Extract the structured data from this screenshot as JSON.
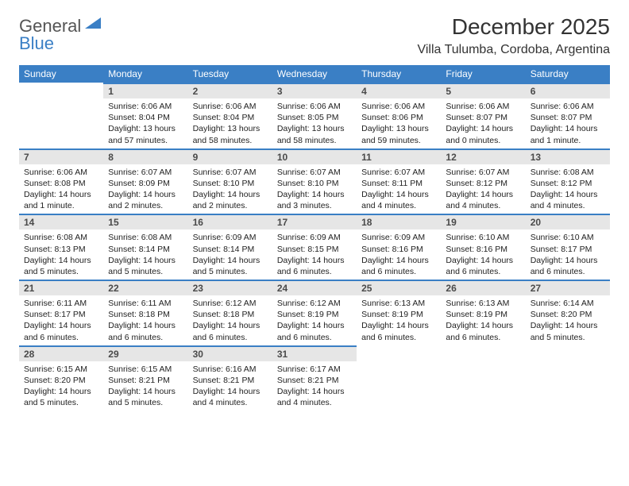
{
  "logo": {
    "line1": "General",
    "line2": "Blue"
  },
  "title": "December 2025",
  "location": "Villa Tulumba, Cordoba, Argentina",
  "colors": {
    "header_bg": "#3a7fc5",
    "header_text": "#ffffff",
    "daynum_bg": "#e6e6e6",
    "daynum_border": "#3a7fc5",
    "body_bg": "#ffffff",
    "text": "#1a1a1a"
  },
  "weekdays": [
    "Sunday",
    "Monday",
    "Tuesday",
    "Wednesday",
    "Thursday",
    "Friday",
    "Saturday"
  ],
  "weeks": [
    [
      null,
      {
        "n": "1",
        "sr": "Sunrise: 6:06 AM",
        "ss": "Sunset: 8:04 PM",
        "dl": "Daylight: 13 hours and 57 minutes."
      },
      {
        "n": "2",
        "sr": "Sunrise: 6:06 AM",
        "ss": "Sunset: 8:04 PM",
        "dl": "Daylight: 13 hours and 58 minutes."
      },
      {
        "n": "3",
        "sr": "Sunrise: 6:06 AM",
        "ss": "Sunset: 8:05 PM",
        "dl": "Daylight: 13 hours and 58 minutes."
      },
      {
        "n": "4",
        "sr": "Sunrise: 6:06 AM",
        "ss": "Sunset: 8:06 PM",
        "dl": "Daylight: 13 hours and 59 minutes."
      },
      {
        "n": "5",
        "sr": "Sunrise: 6:06 AM",
        "ss": "Sunset: 8:07 PM",
        "dl": "Daylight: 14 hours and 0 minutes."
      },
      {
        "n": "6",
        "sr": "Sunrise: 6:06 AM",
        "ss": "Sunset: 8:07 PM",
        "dl": "Daylight: 14 hours and 1 minute."
      }
    ],
    [
      {
        "n": "7",
        "sr": "Sunrise: 6:06 AM",
        "ss": "Sunset: 8:08 PM",
        "dl": "Daylight: 14 hours and 1 minute."
      },
      {
        "n": "8",
        "sr": "Sunrise: 6:07 AM",
        "ss": "Sunset: 8:09 PM",
        "dl": "Daylight: 14 hours and 2 minutes."
      },
      {
        "n": "9",
        "sr": "Sunrise: 6:07 AM",
        "ss": "Sunset: 8:10 PM",
        "dl": "Daylight: 14 hours and 2 minutes."
      },
      {
        "n": "10",
        "sr": "Sunrise: 6:07 AM",
        "ss": "Sunset: 8:10 PM",
        "dl": "Daylight: 14 hours and 3 minutes."
      },
      {
        "n": "11",
        "sr": "Sunrise: 6:07 AM",
        "ss": "Sunset: 8:11 PM",
        "dl": "Daylight: 14 hours and 4 minutes."
      },
      {
        "n": "12",
        "sr": "Sunrise: 6:07 AM",
        "ss": "Sunset: 8:12 PM",
        "dl": "Daylight: 14 hours and 4 minutes."
      },
      {
        "n": "13",
        "sr": "Sunrise: 6:08 AM",
        "ss": "Sunset: 8:12 PM",
        "dl": "Daylight: 14 hours and 4 minutes."
      }
    ],
    [
      {
        "n": "14",
        "sr": "Sunrise: 6:08 AM",
        "ss": "Sunset: 8:13 PM",
        "dl": "Daylight: 14 hours and 5 minutes."
      },
      {
        "n": "15",
        "sr": "Sunrise: 6:08 AM",
        "ss": "Sunset: 8:14 PM",
        "dl": "Daylight: 14 hours and 5 minutes."
      },
      {
        "n": "16",
        "sr": "Sunrise: 6:09 AM",
        "ss": "Sunset: 8:14 PM",
        "dl": "Daylight: 14 hours and 5 minutes."
      },
      {
        "n": "17",
        "sr": "Sunrise: 6:09 AM",
        "ss": "Sunset: 8:15 PM",
        "dl": "Daylight: 14 hours and 6 minutes."
      },
      {
        "n": "18",
        "sr": "Sunrise: 6:09 AM",
        "ss": "Sunset: 8:16 PM",
        "dl": "Daylight: 14 hours and 6 minutes."
      },
      {
        "n": "19",
        "sr": "Sunrise: 6:10 AM",
        "ss": "Sunset: 8:16 PM",
        "dl": "Daylight: 14 hours and 6 minutes."
      },
      {
        "n": "20",
        "sr": "Sunrise: 6:10 AM",
        "ss": "Sunset: 8:17 PM",
        "dl": "Daylight: 14 hours and 6 minutes."
      }
    ],
    [
      {
        "n": "21",
        "sr": "Sunrise: 6:11 AM",
        "ss": "Sunset: 8:17 PM",
        "dl": "Daylight: 14 hours and 6 minutes."
      },
      {
        "n": "22",
        "sr": "Sunrise: 6:11 AM",
        "ss": "Sunset: 8:18 PM",
        "dl": "Daylight: 14 hours and 6 minutes."
      },
      {
        "n": "23",
        "sr": "Sunrise: 6:12 AM",
        "ss": "Sunset: 8:18 PM",
        "dl": "Daylight: 14 hours and 6 minutes."
      },
      {
        "n": "24",
        "sr": "Sunrise: 6:12 AM",
        "ss": "Sunset: 8:19 PM",
        "dl": "Daylight: 14 hours and 6 minutes."
      },
      {
        "n": "25",
        "sr": "Sunrise: 6:13 AM",
        "ss": "Sunset: 8:19 PM",
        "dl": "Daylight: 14 hours and 6 minutes."
      },
      {
        "n": "26",
        "sr": "Sunrise: 6:13 AM",
        "ss": "Sunset: 8:19 PM",
        "dl": "Daylight: 14 hours and 6 minutes."
      },
      {
        "n": "27",
        "sr": "Sunrise: 6:14 AM",
        "ss": "Sunset: 8:20 PM",
        "dl": "Daylight: 14 hours and 5 minutes."
      }
    ],
    [
      {
        "n": "28",
        "sr": "Sunrise: 6:15 AM",
        "ss": "Sunset: 8:20 PM",
        "dl": "Daylight: 14 hours and 5 minutes."
      },
      {
        "n": "29",
        "sr": "Sunrise: 6:15 AM",
        "ss": "Sunset: 8:21 PM",
        "dl": "Daylight: 14 hours and 5 minutes."
      },
      {
        "n": "30",
        "sr": "Sunrise: 6:16 AM",
        "ss": "Sunset: 8:21 PM",
        "dl": "Daylight: 14 hours and 4 minutes."
      },
      {
        "n": "31",
        "sr": "Sunrise: 6:17 AM",
        "ss": "Sunset: 8:21 PM",
        "dl": "Daylight: 14 hours and 4 minutes."
      },
      null,
      null,
      null
    ]
  ]
}
